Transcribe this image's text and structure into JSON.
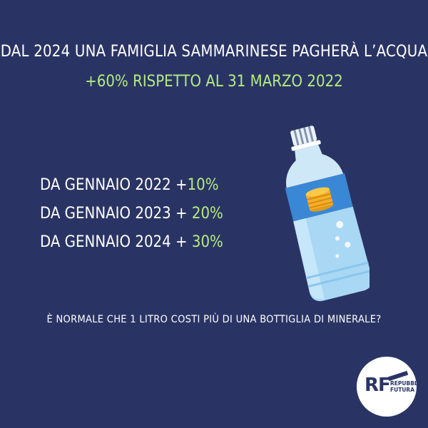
{
  "headline": "DAL 2024 UNA FAMIGLIA SAMMARINESE PAGHERÀ L’ACQUA",
  "subheadline": "+60% RISPETTO AL 31 MARZO 2022",
  "increases": [
    {
      "label": "DA GENNAIO 2022 +",
      "pct": "10%"
    },
    {
      "label": "DA GENNAIO 2023 + ",
      "pct": "20%"
    },
    {
      "label": "DA GENNAIO 2024 + ",
      "pct": "30%"
    }
  ],
  "question": "È NORMALE CHE 1 LITRO COSTI PIÙ DI UNA BOTTIGLIA DI MINERALE?",
  "logo": {
    "mark": "RF",
    "line1": "REPUBBLICA",
    "line2": "FUTURA"
  },
  "illustration": {
    "icon": "water-bottle-with-coins-icon"
  },
  "colors": {
    "background": "#2a3464",
    "accent": "#b4ec80",
    "text": "#ffffff"
  }
}
